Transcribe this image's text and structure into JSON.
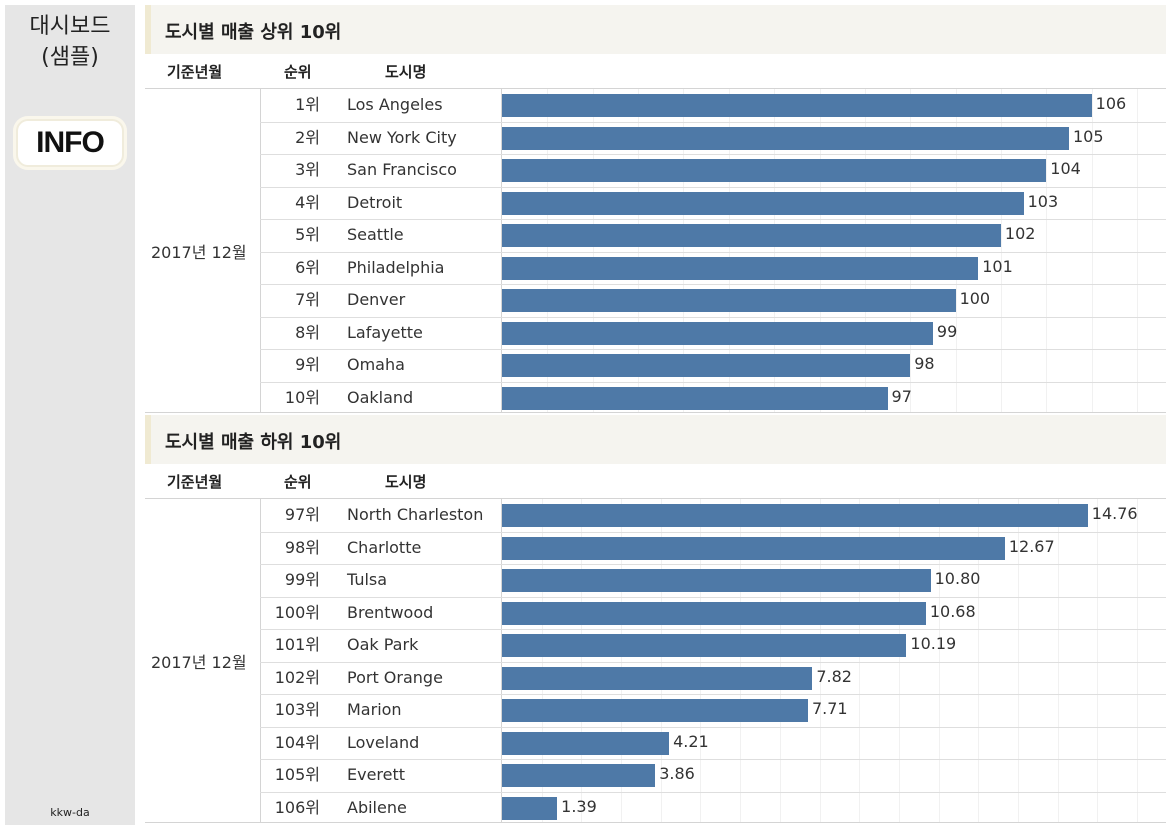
{
  "sidebar": {
    "title_line1": "대시보드",
    "title_line2": "(샘플)",
    "info_label": "INFO",
    "credit": "kkw-da"
  },
  "colors": {
    "bar": "#4e79a7",
    "header_bg": "#f5f4ef",
    "sidebar_bg": "#e6e6e6"
  },
  "chart_data": [
    {
      "type": "bar",
      "orientation": "horizontal",
      "title": "도시별 매출 상위 10위",
      "columns": {
        "period": "기준년월",
        "rank": "순위",
        "city": "도시명"
      },
      "period": "2017년 12월",
      "ranks": [
        "1위",
        "2위",
        "3위",
        "4위",
        "5위",
        "6위",
        "7위",
        "8위",
        "9위",
        "10위"
      ],
      "categories": [
        "Los Angeles",
        "New York City",
        "San Francisco",
        "Detroit",
        "Seattle",
        "Philadelphia",
        "Denver",
        "Lafayette",
        "Omaha",
        "Oakland"
      ],
      "values": [
        106,
        105,
        104,
        103,
        102,
        101,
        100,
        99,
        98,
        97
      ],
      "value_labels": [
        "106",
        "105",
        "104",
        "103",
        "102",
        "101",
        "100",
        "99",
        "98",
        "97"
      ],
      "axis_min": 80,
      "axis_max": 108,
      "grid_step": 2
    },
    {
      "type": "bar",
      "orientation": "horizontal",
      "title": "도시별 매출 하위 10위",
      "columns": {
        "period": "기준년월",
        "rank": "순위",
        "city": "도시명"
      },
      "period": "2017년 12월",
      "ranks": [
        "97위",
        "98위",
        "99위",
        "100위",
        "101위",
        "102위",
        "103위",
        "104위",
        "105위",
        "106위"
      ],
      "categories": [
        "North Charleston",
        "Charlotte",
        "Tulsa",
        "Brentwood",
        "Oak Park",
        "Port Orange",
        "Marion",
        "Loveland",
        "Everett",
        "Abilene"
      ],
      "values": [
        14.76,
        12.67,
        10.8,
        10.68,
        10.19,
        7.82,
        7.71,
        4.21,
        3.86,
        1.39
      ],
      "value_labels": [
        "14.76",
        "12.67",
        "10.80",
        "10.68",
        "10.19",
        "7.82",
        "7.71",
        "4.21",
        "3.86",
        "1.39"
      ],
      "axis_min": 0,
      "axis_max": 16,
      "grid_step": 1
    }
  ]
}
